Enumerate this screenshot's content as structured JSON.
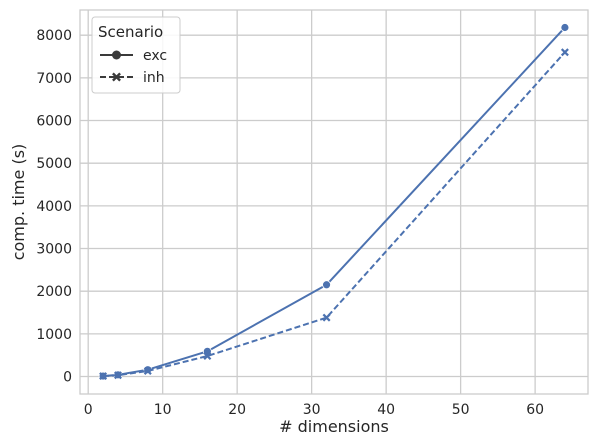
{
  "chart_data": {
    "type": "line",
    "xlabel": "# dimensions",
    "ylabel": "comp. time (s)",
    "xlim": [
      -1.1,
      67.1
    ],
    "ylim": [
      -410,
      8590
    ],
    "xticks": [
      0,
      10,
      20,
      30,
      40,
      50,
      60
    ],
    "yticks": [
      0,
      1000,
      2000,
      3000,
      4000,
      5000,
      6000,
      7000,
      8000
    ],
    "grid": true,
    "legend": {
      "title": "Scenario",
      "placement": "top-left",
      "entries": [
        "exc",
        "inh"
      ]
    },
    "colors": {
      "line": "#4c72b0",
      "frame": "#cccccc",
      "grid": "#cccccc"
    },
    "series": [
      {
        "name": "exc",
        "marker": "circle",
        "dash": "solid",
        "x": [
          2,
          4,
          8,
          16,
          32,
          64
        ],
        "y": [
          10,
          40,
          160,
          590,
          2150,
          8180
        ]
      },
      {
        "name": "inh",
        "marker": "x",
        "dash": "dashed",
        "x": [
          2,
          4,
          8,
          16,
          32,
          64
        ],
        "y": [
          10,
          30,
          130,
          480,
          1380,
          7600
        ]
      }
    ]
  }
}
